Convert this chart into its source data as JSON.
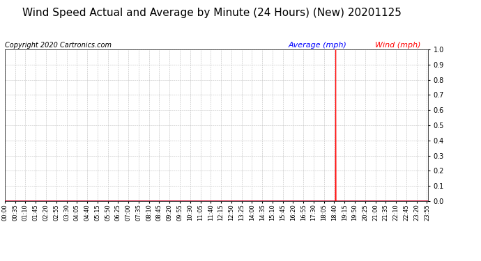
{
  "title": "Wind Speed Actual and Average by Minute (24 Hours) (New) 20201125",
  "copyright": "Copyright 2020 Cartronics.com",
  "legend_average_label": "Average (mph)",
  "legend_wind_label": "Wind (mph)",
  "legend_average_color": "blue",
  "legend_wind_color": "red",
  "ylim": [
    0.0,
    1.0
  ],
  "ytick_values": [
    0.0,
    0.1,
    0.2,
    0.2,
    0.3,
    0.4,
    0.5,
    0.6,
    0.7,
    0.8,
    0.8,
    0.9,
    1.0
  ],
  "average_color": "blue",
  "wind_color": "red",
  "grid_color": "#bbbbbb",
  "background_color": "#ffffff",
  "title_fontsize": 11,
  "copyright_fontsize": 7,
  "legend_fontsize": 8,
  "tick_fontsize": 6,
  "spike_minute": 1125,
  "spike_value": 1.0,
  "total_minutes": 1440,
  "xtick_step": 35
}
